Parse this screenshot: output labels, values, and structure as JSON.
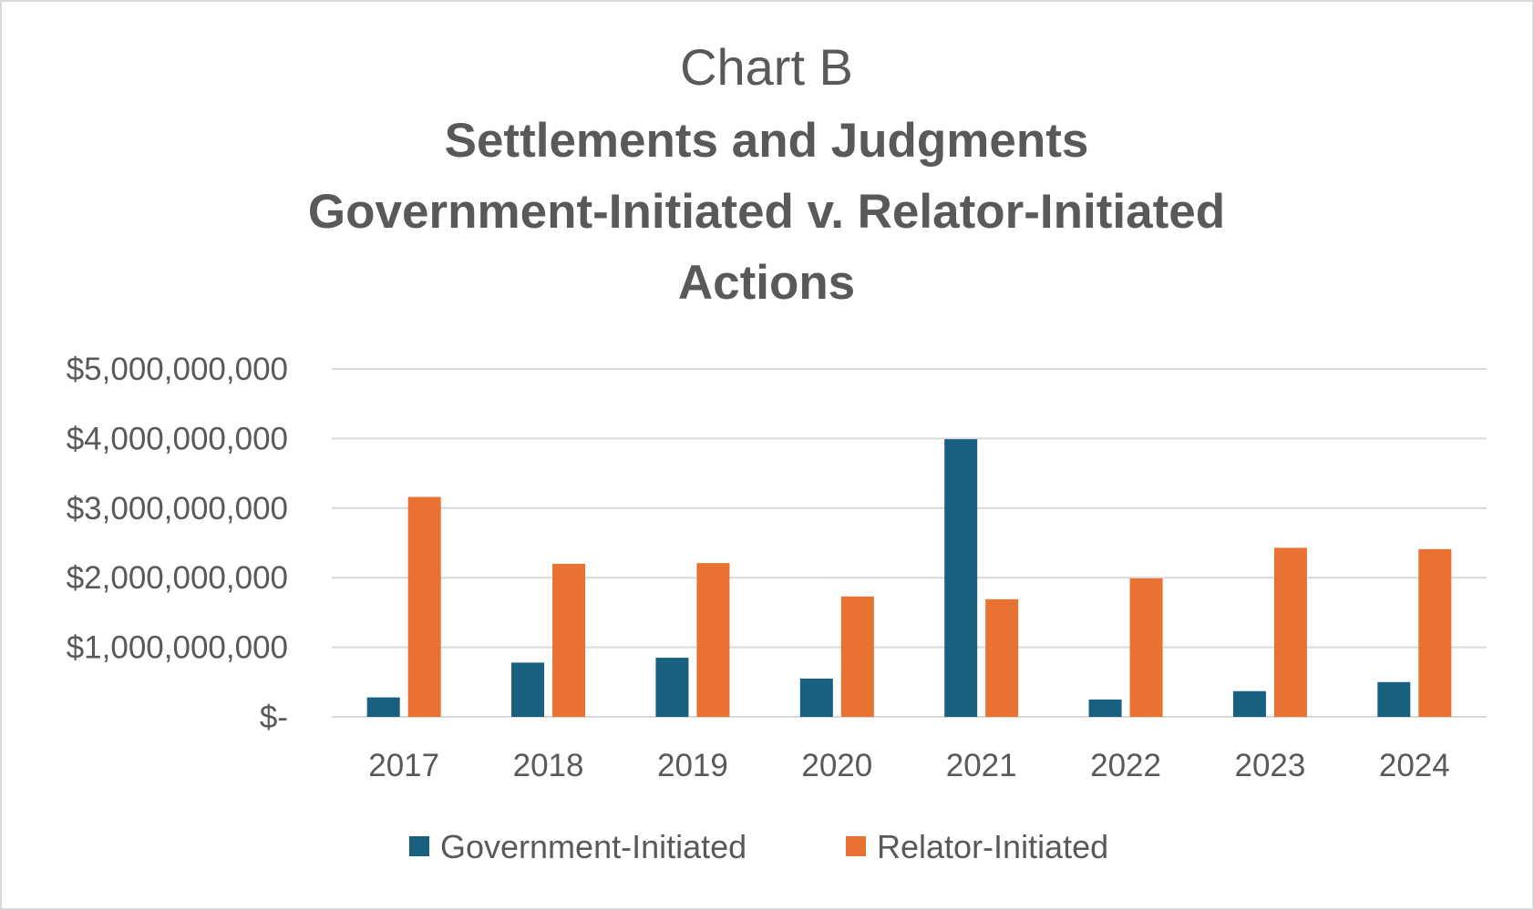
{
  "chart_data": {
    "type": "bar",
    "title": "Chart B",
    "subtitle_lines": [
      "Settlements and Judgments",
      "Government-Initiated v. Relator-Initiated",
      "Actions"
    ],
    "categories": [
      "2017",
      "2018",
      "2019",
      "2020",
      "2021",
      "2022",
      "2023",
      "2024"
    ],
    "series": [
      {
        "name": "Government-Initiated",
        "color": "#17607f",
        "values": [
          280000000,
          780000000,
          850000000,
          550000000,
          3990000000,
          250000000,
          370000000,
          500000000
        ]
      },
      {
        "name": "Relator-Initiated",
        "color": "#e97132",
        "values": [
          3160000000,
          2200000000,
          2210000000,
          1730000000,
          1690000000,
          1990000000,
          2430000000,
          2410000000
        ]
      }
    ],
    "ylim": [
      0,
      5000000000
    ],
    "yticks": [
      {
        "value": 5000000000,
        "label": "$5,000,000,000"
      },
      {
        "value": 4000000000,
        "label": "$4,000,000,000"
      },
      {
        "value": 3000000000,
        "label": "$3,000,000,000"
      },
      {
        "value": 2000000000,
        "label": "$2,000,000,000"
      },
      {
        "value": 1000000000,
        "label": "$1,000,000,000"
      },
      {
        "value": 0,
        "label": "$-"
      }
    ],
    "xlabel": "",
    "ylabel": "",
    "grid": true,
    "gridColor": "#d9d9d9",
    "legend_position": "bottom"
  }
}
